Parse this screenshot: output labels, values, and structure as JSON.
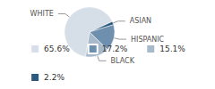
{
  "chart_data": {
    "type": "pie",
    "categories": [
      "WHITE",
      "ASIAN",
      "HISPANIC",
      "BLACK"
    ],
    "values": [
      65.6,
      2.2,
      17.2,
      15.1
    ],
    "value_labels": [
      "65.6%",
      "2.2%",
      "17.2%",
      "15.1%"
    ],
    "colors": [
      "#d6dee7",
      "#2d5a7f",
      "#6f8fae",
      "#a8b9cb"
    ],
    "legend": "bottom"
  }
}
